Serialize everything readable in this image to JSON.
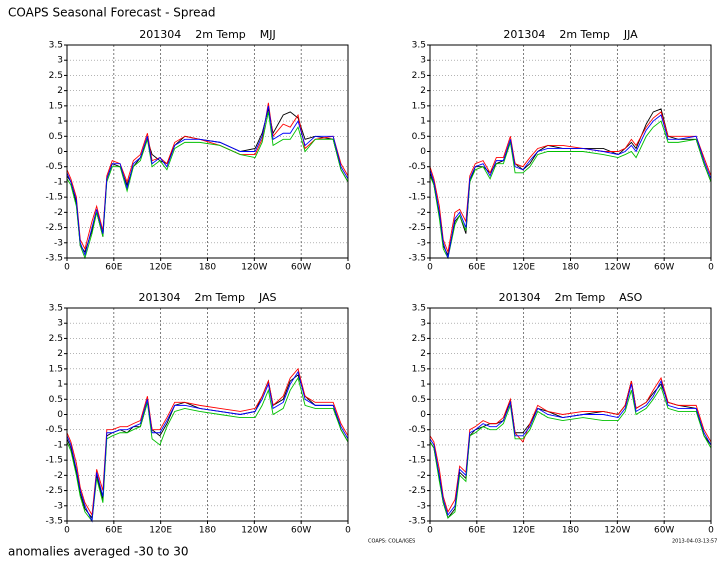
{
  "title": "COAPS Seasonal Forecast - Spread",
  "footnote": "anomalies averaged -30 to 30",
  "credit": "COAPS: COLA/IGES",
  "timestamp": "2013-04-03-13:57",
  "chart_data": [
    {
      "type": "line",
      "title": "201304    2m Temp    MJJ",
      "x": [
        0,
        5,
        12,
        17,
        23,
        32,
        38,
        46,
        51,
        58,
        68,
        77,
        85,
        94,
        103,
        109,
        119,
        128,
        138,
        151,
        170,
        196,
        222,
        241,
        250,
        258,
        264,
        277,
        286,
        296,
        305,
        318,
        341,
        351,
        360
      ],
      "series": [
        {
          "color": "#000000",
          "values": [
            -0.8,
            -1.0,
            -1.7,
            -3.1,
            -3.3,
            -2.6,
            -2.0,
            -2.8,
            -0.9,
            -0.4,
            -0.5,
            -1.1,
            -0.5,
            -0.2,
            0.4,
            -0.1,
            -0.3,
            -0.4,
            0.2,
            0.5,
            0.4,
            0.3,
            0.0,
            0.1,
            0.6,
            1.4,
            0.6,
            1.2,
            1.3,
            1.1,
            0.4,
            0.5,
            0.4,
            -0.6,
            -1.0
          ]
        },
        {
          "color": "#ff0000",
          "values": [
            -0.6,
            -0.9,
            -1.5,
            -2.9,
            -3.2,
            -2.3,
            -1.8,
            -2.6,
            -0.8,
            -0.3,
            -0.4,
            -1.0,
            -0.3,
            -0.1,
            0.6,
            -0.3,
            -0.2,
            -0.4,
            0.3,
            0.5,
            0.4,
            0.2,
            -0.1,
            -0.1,
            0.4,
            1.6,
            0.5,
            0.9,
            0.8,
            1.2,
            0.1,
            0.4,
            0.5,
            -0.4,
            -0.8
          ]
        },
        {
          "color": "#00c000",
          "values": [
            -0.9,
            -1.1,
            -1.8,
            -3.1,
            -3.5,
            -2.7,
            -2.0,
            -2.8,
            -1.0,
            -0.5,
            -0.5,
            -1.3,
            -0.5,
            -0.3,
            0.4,
            -0.5,
            -0.3,
            -0.6,
            0.1,
            0.3,
            0.3,
            0.2,
            -0.1,
            -0.2,
            0.3,
            1.3,
            0.2,
            0.4,
            0.4,
            0.8,
            0.0,
            0.4,
            0.4,
            -0.6,
            -1.0
          ]
        },
        {
          "color": "#0000ff",
          "values": [
            -0.7,
            -1.0,
            -1.6,
            -3.0,
            -3.4,
            -2.5,
            -1.9,
            -2.7,
            -0.9,
            -0.4,
            -0.4,
            -1.2,
            -0.4,
            -0.2,
            0.5,
            -0.4,
            -0.2,
            -0.5,
            0.2,
            0.4,
            0.4,
            0.3,
            0.0,
            0.0,
            0.5,
            1.5,
            0.4,
            0.6,
            0.6,
            1.0,
            0.2,
            0.5,
            0.5,
            -0.5,
            -0.9
          ]
        }
      ],
      "xlim": [
        0,
        360
      ],
      "ylim": [
        -3.5,
        3.5
      ],
      "xticks": [
        0,
        {
          "value": 60,
          "label": "60E"
        },
        {
          "value": 120,
          "label": "120E"
        },
        180,
        {
          "value": 240,
          "label": "120W"
        },
        {
          "value": 300,
          "label": "60W"
        },
        {
          "value": 360,
          "label": "0"
        }
      ],
      "yticks": [
        -3.5,
        -3,
        -2.5,
        -2,
        -1.5,
        -1,
        -0.5,
        0,
        0.5,
        1,
        1.5,
        2,
        2.5,
        3,
        3.5
      ],
      "grid": true
    },
    {
      "type": "line",
      "title": "201304    2m Temp    JJA",
      "x": [
        0,
        5,
        12,
        17,
        23,
        32,
        38,
        46,
        51,
        58,
        68,
        77,
        85,
        94,
        103,
        109,
        119,
        128,
        138,
        151,
        170,
        196,
        222,
        241,
        250,
        258,
        264,
        277,
        286,
        296,
        305,
        318,
        341,
        351,
        360
      ],
      "series": [
        {
          "color": "#000000",
          "values": [
            -0.7,
            -1.1,
            -2.1,
            -3.1,
            -3.4,
            -2.3,
            -2.1,
            -2.7,
            -1.0,
            -0.5,
            -0.5,
            -0.7,
            -0.4,
            -0.3,
            0.3,
            -0.4,
            -0.6,
            -0.4,
            0.0,
            0.2,
            0.1,
            0.1,
            0.1,
            -0.1,
            0.1,
            0.3,
            0.1,
            0.9,
            1.3,
            1.4,
            0.5,
            0.4,
            0.4,
            -0.4,
            -1.0
          ]
        },
        {
          "color": "#ff0000",
          "values": [
            -0.5,
            -0.9,
            -1.8,
            -2.9,
            -3.3,
            -2.0,
            -1.9,
            -2.3,
            -0.8,
            -0.4,
            -0.3,
            -0.7,
            -0.2,
            -0.2,
            0.5,
            -0.4,
            -0.5,
            -0.2,
            0.1,
            0.2,
            0.2,
            0.1,
            0.0,
            0.0,
            0.1,
            0.4,
            0.2,
            0.8,
            1.1,
            1.3,
            0.5,
            0.5,
            0.5,
            -0.2,
            -0.8
          ]
        },
        {
          "color": "#00c000",
          "values": [
            -0.8,
            -1.1,
            -2.2,
            -3.2,
            -3.5,
            -2.4,
            -2.1,
            -2.6,
            -1.0,
            -0.6,
            -0.5,
            -0.9,
            -0.4,
            -0.4,
            0.3,
            -0.7,
            -0.7,
            -0.5,
            -0.1,
            0.0,
            0.0,
            0.0,
            -0.1,
            -0.2,
            -0.1,
            0.0,
            -0.2,
            0.5,
            0.8,
            1.0,
            0.3,
            0.3,
            0.4,
            -0.4,
            -1.0
          ]
        },
        {
          "color": "#0000ff",
          "values": [
            -0.6,
            -1.0,
            -2.0,
            -3.0,
            -3.5,
            -2.2,
            -2.0,
            -2.5,
            -0.9,
            -0.5,
            -0.4,
            -0.8,
            -0.3,
            -0.3,
            0.4,
            -0.5,
            -0.6,
            -0.3,
            0.0,
            0.1,
            0.1,
            0.1,
            0.0,
            -0.1,
            0.0,
            0.2,
            0.0,
            0.7,
            1.0,
            1.2,
            0.4,
            0.4,
            0.5,
            -0.3,
            -0.9
          ]
        }
      ],
      "xlim": [
        0,
        360
      ],
      "ylim": [
        -3.5,
        3.5
      ],
      "xticks": [
        0,
        {
          "value": 60,
          "label": "60E"
        },
        {
          "value": 120,
          "label": "120E"
        },
        180,
        {
          "value": 240,
          "label": "120W"
        },
        {
          "value": 300,
          "label": "60W"
        },
        {
          "value": 360,
          "label": "0"
        }
      ],
      "yticks": [
        -3.5,
        -3,
        -2.5,
        -2,
        -1.5,
        -1,
        -0.5,
        0,
        0.5,
        1,
        1.5,
        2,
        2.5,
        3,
        3.5
      ],
      "grid": true
    },
    {
      "type": "line",
      "title": "201304    2m Temp    JAS",
      "x": [
        0,
        5,
        12,
        17,
        23,
        32,
        38,
        46,
        51,
        58,
        68,
        77,
        85,
        94,
        103,
        109,
        119,
        128,
        138,
        151,
        170,
        196,
        222,
        241,
        250,
        258,
        264,
        277,
        286,
        296,
        305,
        318,
        341,
        351,
        360
      ],
      "series": [
        {
          "color": "#000000",
          "values": [
            -0.8,
            -1.1,
            -1.9,
            -2.6,
            -3.1,
            -3.4,
            -2.0,
            -2.8,
            -0.7,
            -0.6,
            -0.5,
            -0.6,
            -0.4,
            -0.4,
            0.4,
            -0.5,
            -0.7,
            -0.3,
            0.3,
            0.4,
            0.2,
            0.1,
            0.0,
            0.1,
            0.6,
            1.1,
            0.3,
            0.5,
            1.1,
            1.3,
            0.6,
            0.3,
            0.3,
            -0.5,
            -0.9
          ]
        },
        {
          "color": "#ff0000",
          "values": [
            -0.6,
            -0.9,
            -1.6,
            -2.4,
            -2.9,
            -3.3,
            -1.8,
            -2.5,
            -0.5,
            -0.5,
            -0.4,
            -0.4,
            -0.3,
            -0.2,
            0.6,
            -0.5,
            -0.5,
            -0.1,
            0.4,
            0.4,
            0.3,
            0.2,
            0.1,
            0.2,
            0.6,
            1.1,
            0.3,
            0.6,
            1.2,
            1.5,
            0.6,
            0.4,
            0.4,
            -0.3,
            -0.7
          ]
        },
        {
          "color": "#00c000",
          "values": [
            -0.9,
            -1.2,
            -2.0,
            -2.7,
            -3.2,
            -3.5,
            -2.1,
            -2.9,
            -0.8,
            -0.7,
            -0.6,
            -0.6,
            -0.5,
            -0.4,
            0.4,
            -0.8,
            -1.0,
            -0.4,
            0.1,
            0.2,
            0.1,
            0.0,
            -0.1,
            -0.1,
            0.3,
            0.8,
            0.0,
            0.2,
            0.8,
            1.2,
            0.3,
            0.2,
            0.2,
            -0.5,
            -0.9
          ]
        },
        {
          "color": "#0000ff",
          "values": [
            -0.7,
            -1.0,
            -1.8,
            -2.5,
            -3.0,
            -3.5,
            -1.9,
            -2.7,
            -0.6,
            -0.6,
            -0.5,
            -0.5,
            -0.4,
            -0.3,
            0.5,
            -0.6,
            -0.6,
            -0.2,
            0.3,
            0.3,
            0.2,
            0.1,
            0.0,
            0.1,
            0.5,
            1.0,
            0.2,
            0.4,
            1.0,
            1.4,
            0.5,
            0.3,
            0.3,
            -0.4,
            -0.8
          ]
        }
      ],
      "xlim": [
        0,
        360
      ],
      "ylim": [
        -3.5,
        3.5
      ],
      "xticks": [
        0,
        {
          "value": 60,
          "label": "60E"
        },
        {
          "value": 120,
          "label": "120E"
        },
        180,
        {
          "value": 240,
          "label": "120W"
        },
        {
          "value": 300,
          "label": "60W"
        },
        {
          "value": 360,
          "label": "0"
        }
      ],
      "yticks": [
        -3.5,
        -3,
        -2.5,
        -2,
        -1.5,
        -1,
        -0.5,
        0,
        0.5,
        1,
        1.5,
        2,
        2.5,
        3,
        3.5
      ],
      "grid": true
    },
    {
      "type": "line",
      "title": "201304    2m Temp    ASO",
      "x": [
        0,
        5,
        12,
        17,
        23,
        32,
        38,
        46,
        51,
        58,
        68,
        77,
        85,
        94,
        103,
        109,
        119,
        128,
        138,
        151,
        170,
        196,
        222,
        241,
        250,
        258,
        264,
        277,
        286,
        296,
        305,
        318,
        341,
        351,
        360
      ],
      "series": [
        {
          "color": "#000000",
          "values": [
            -0.9,
            -1.1,
            -2.1,
            -2.9,
            -3.4,
            -3.1,
            -1.9,
            -2.1,
            -0.7,
            -0.5,
            -0.4,
            -0.3,
            -0.3,
            -0.2,
            0.5,
            -0.6,
            -0.6,
            -0.3,
            0.2,
            0.1,
            -0.1,
            0.0,
            0.1,
            0.0,
            0.3,
            1.1,
            0.2,
            0.4,
            0.7,
            1.0,
            0.4,
            0.3,
            0.2,
            -0.7,
            -1.0
          ]
        },
        {
          "color": "#ff0000",
          "values": [
            -0.7,
            -0.9,
            -1.8,
            -2.7,
            -3.2,
            -2.8,
            -1.7,
            -1.9,
            -0.5,
            -0.4,
            -0.2,
            -0.3,
            -0.3,
            -0.1,
            0.5,
            -0.6,
            -0.9,
            -0.3,
            0.3,
            0.1,
            0.0,
            0.1,
            0.1,
            0.0,
            0.3,
            1.1,
            0.2,
            0.4,
            0.8,
            1.2,
            0.4,
            0.3,
            0.3,
            -0.5,
            -0.9
          ]
        },
        {
          "color": "#00c000",
          "values": [
            -0.9,
            -1.1,
            -2.2,
            -2.9,
            -3.4,
            -3.2,
            -2.0,
            -2.2,
            -0.7,
            -0.6,
            -0.4,
            -0.5,
            -0.5,
            -0.3,
            0.3,
            -0.8,
            -0.8,
            -0.5,
            0.1,
            -0.1,
            -0.2,
            -0.1,
            -0.2,
            -0.2,
            0.1,
            0.8,
            0.0,
            0.2,
            0.5,
            0.9,
            0.2,
            0.1,
            0.1,
            -0.7,
            -1.1
          ]
        },
        {
          "color": "#0000ff",
          "values": [
            -0.8,
            -1.0,
            -2.0,
            -2.8,
            -3.3,
            -3.0,
            -1.8,
            -2.0,
            -0.6,
            -0.5,
            -0.3,
            -0.4,
            -0.4,
            -0.2,
            0.4,
            -0.7,
            -0.7,
            -0.4,
            0.2,
            0.0,
            -0.1,
            0.0,
            0.0,
            -0.1,
            0.2,
            1.0,
            0.1,
            0.3,
            0.6,
            1.1,
            0.3,
            0.2,
            0.2,
            -0.6,
            -1.0
          ]
        }
      ],
      "xlim": [
        0,
        360
      ],
      "ylim": [
        -3.5,
        3.5
      ],
      "xticks": [
        0,
        {
          "value": 60,
          "label": "60E"
        },
        {
          "value": 120,
          "label": "120E"
        },
        180,
        {
          "value": 240,
          "label": "120W"
        },
        {
          "value": 300,
          "label": "60W"
        },
        {
          "value": 360,
          "label": "0"
        }
      ],
      "yticks": [
        -3.5,
        -3,
        -2.5,
        -2,
        -1.5,
        -1,
        -0.5,
        0,
        0.5,
        1,
        1.5,
        2,
        2.5,
        3,
        3.5
      ],
      "grid": true
    }
  ]
}
